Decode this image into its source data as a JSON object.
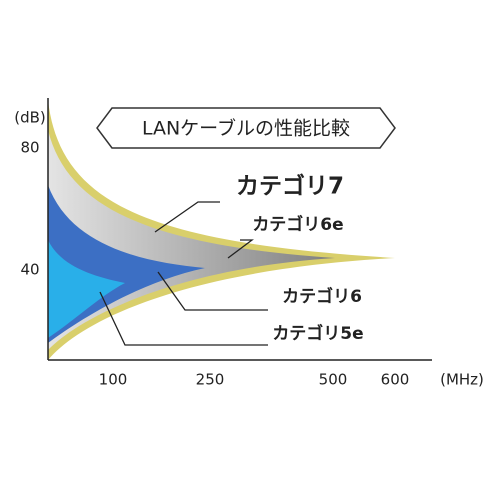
{
  "title": "LANケーブルの性能比較",
  "y_axis": {
    "unit": "(dB)",
    "ticks": [
      "80",
      "40"
    ]
  },
  "x_axis": {
    "unit": "(MHz)",
    "ticks": [
      "100",
      "250",
      "500",
      "600"
    ]
  },
  "labels": {
    "cat7": "カテゴリ7",
    "cat6e": "カテゴリ6e",
    "cat6": "カテゴリ6",
    "cat5e": "カテゴリ5e"
  }
}
